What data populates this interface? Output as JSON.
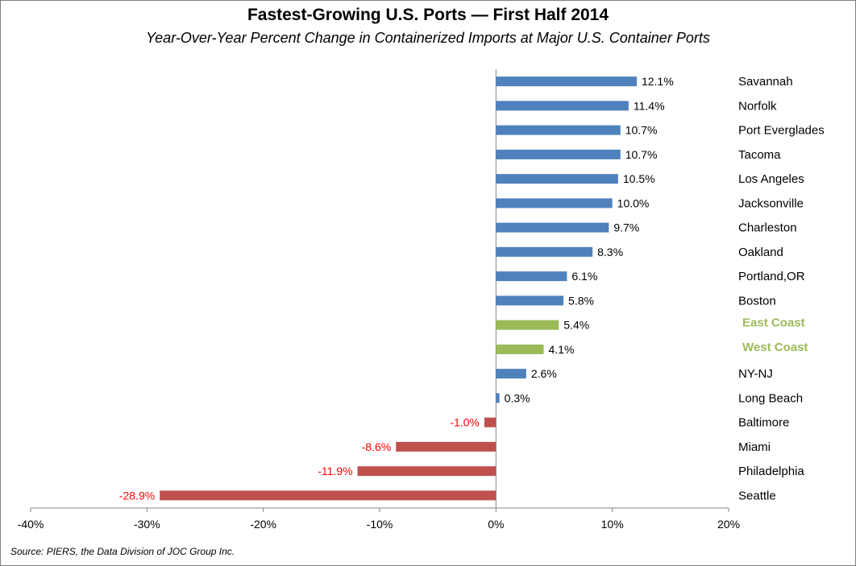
{
  "colors": {
    "positive": "#4f81bd",
    "negative": "#c0504d",
    "highlight": "#9bbb59",
    "negative_label": "#ff0000",
    "axis": "#868686"
  },
  "chart_data": {
    "type": "bar",
    "orientation": "horizontal",
    "title": "Fastest-Growing U.S. Ports — First Half 2014",
    "subtitle": "Year-Over-Year Percent Change in Containerized Imports at Major U.S. Container Ports",
    "source": "Source: PIERS, the Data Division of JOC Group Inc.",
    "xlim": [
      -40,
      20
    ],
    "x_ticks": [
      -40,
      -30,
      -20,
      -10,
      0,
      10,
      20
    ],
    "x_tick_labels": [
      "-40%",
      "-30%",
      "-20%",
      "-10%",
      "0%",
      "10%",
      "20%"
    ],
    "grid": false,
    "legend": "none",
    "categories": [
      "Savannah",
      "Norfolk",
      "Port Everglades",
      "Tacoma",
      "Los Angeles",
      "Jacksonville",
      "Charleston",
      "Oakland",
      "Portland,OR",
      "Boston",
      "East Coast",
      "West Coast",
      "NY-NJ",
      "Long Beach",
      "Baltimore",
      "Miami",
      "Philadelphia",
      "Seattle"
    ],
    "values": [
      12.1,
      11.4,
      10.7,
      10.7,
      10.5,
      10.0,
      9.7,
      8.3,
      6.1,
      5.8,
      5.4,
      4.1,
      2.6,
      0.3,
      -1.0,
      -8.6,
      -11.9,
      -28.9
    ],
    "data_labels": [
      "12.1%",
      "11.4%",
      "10.7%",
      "10.7%",
      "10.5%",
      "10.0%",
      "9.7%",
      "8.3%",
      "6.1%",
      "5.8%",
      "5.4%",
      "4.1%",
      "2.6%",
      "0.3%",
      "-1.0%",
      "-8.6%",
      "-11.9%",
      "-28.9%"
    ],
    "highlighted_categories": [
      "East Coast",
      "West Coast"
    ]
  }
}
